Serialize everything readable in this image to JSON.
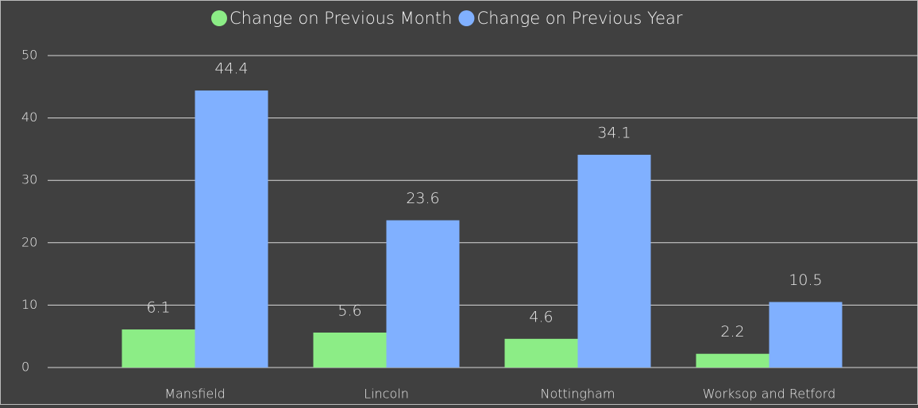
{
  "chart_data": {
    "type": "bar",
    "categories": [
      "Mansfield",
      "Lincoln",
      "Nottingham",
      "Worksop and Retford"
    ],
    "series": [
      {
        "name": "Change on Previous Month",
        "color": "#8ced86",
        "values": [
          6.1,
          5.6,
          4.6,
          2.2
        ]
      },
      {
        "name": "Change on Previous Year",
        "color": "#80b0ff",
        "values": [
          44.4,
          23.6,
          34.1,
          10.5
        ]
      }
    ],
    "ylim": [
      0,
      50
    ],
    "yticks": [
      0,
      10,
      20,
      30,
      40,
      50
    ],
    "grid": true,
    "legend": "top"
  }
}
